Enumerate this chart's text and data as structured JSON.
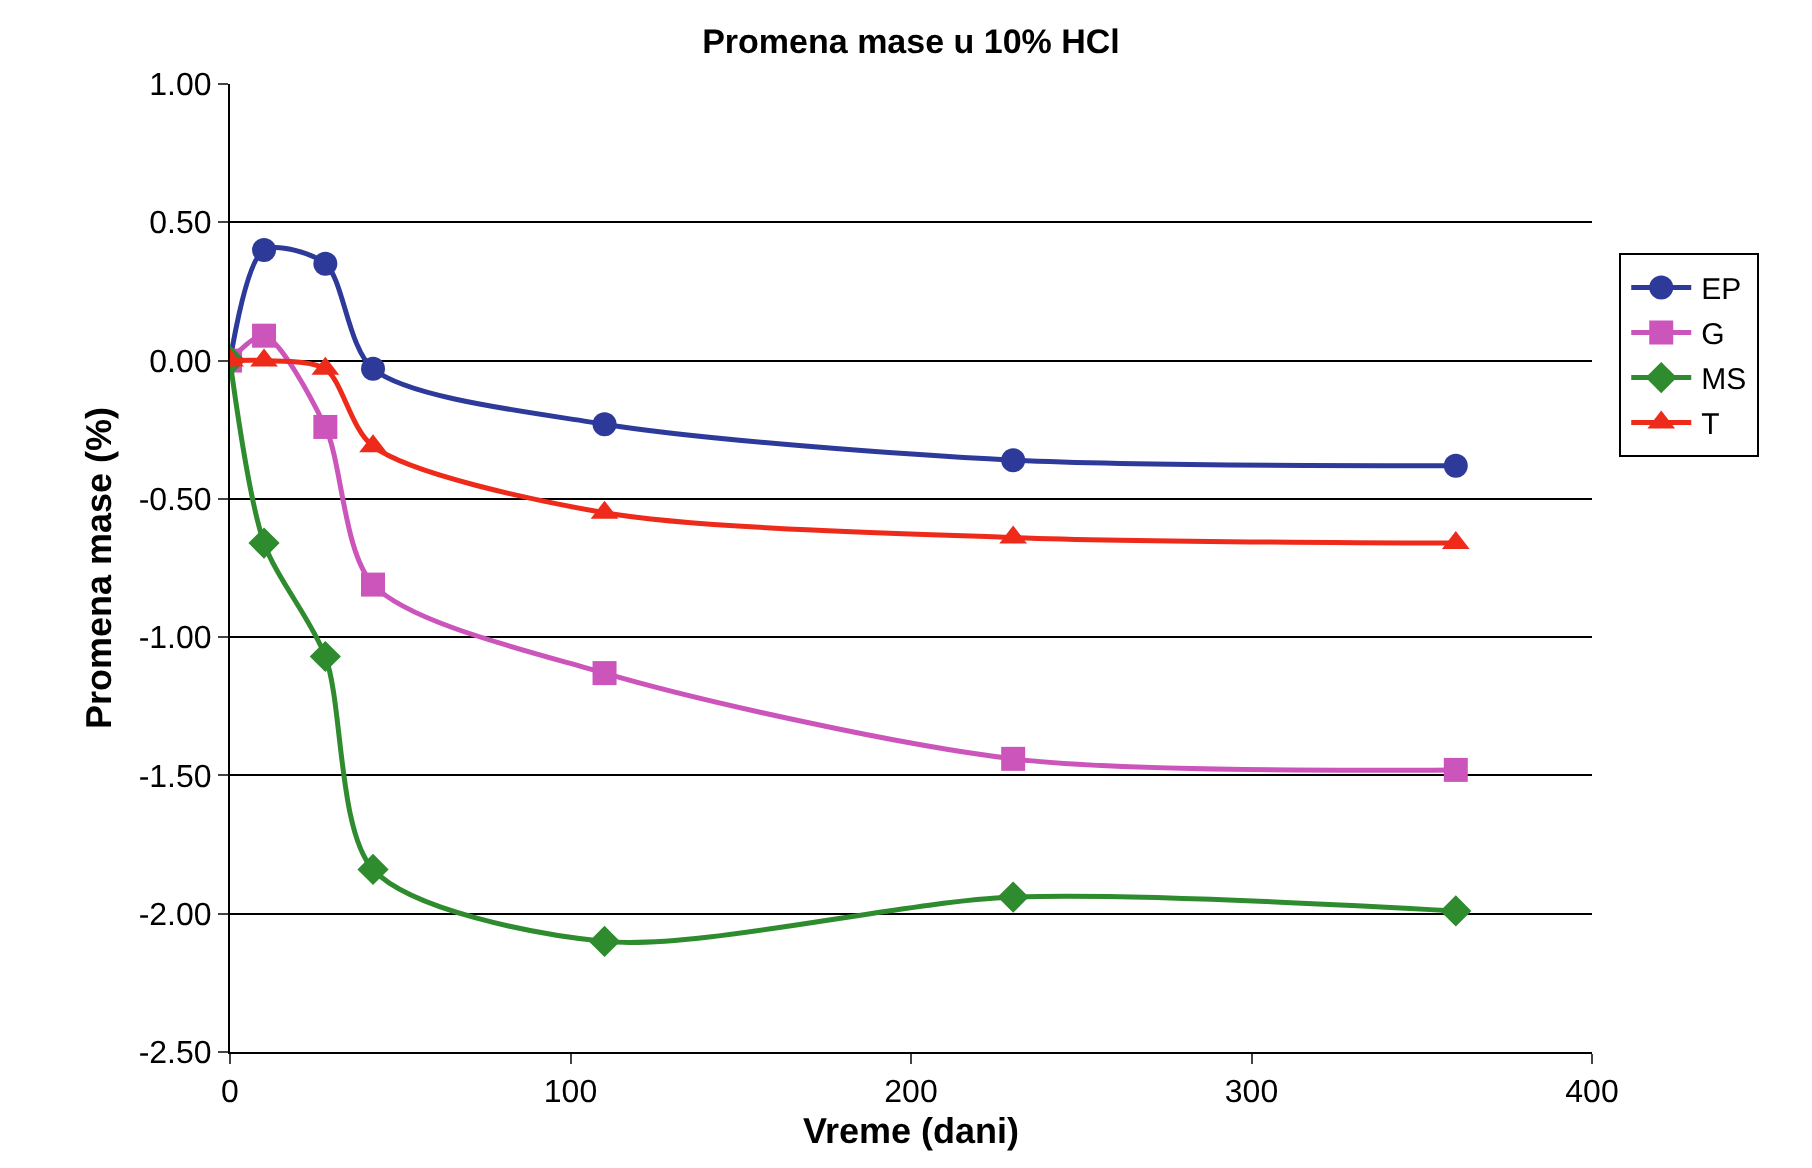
{
  "chart_data": {
    "type": "line",
    "title": "Promena mase u 10% HCl",
    "xlabel": "Vreme (dani)",
    "ylabel": "Promena mase (%)",
    "x": [
      0,
      10,
      28,
      42,
      110,
      230,
      360
    ],
    "series": [
      {
        "name": "EP",
        "color": "#2e3a9a",
        "marker": "circle",
        "values": [
          0,
          0.4,
          0.35,
          -0.03,
          -0.23,
          -0.36,
          -0.38
        ]
      },
      {
        "name": "G",
        "color": "#cc55bb",
        "marker": "square",
        "values": [
          0,
          0.09,
          -0.24,
          -0.81,
          -1.13,
          -1.44,
          -1.48
        ]
      },
      {
        "name": "MS",
        "color": "#2e8b2e",
        "marker": "diamond",
        "values": [
          0,
          -0.66,
          -1.07,
          -1.84,
          -2.1,
          -1.94,
          -1.99
        ]
      },
      {
        "name": "T",
        "color": "#ee2a1a",
        "marker": "triangle",
        "values": [
          0,
          0,
          -0.03,
          -0.31,
          -0.55,
          -0.64,
          -0.66
        ]
      }
    ],
    "xlim": [
      0,
      400
    ],
    "xticks": [
      0,
      100,
      200,
      300,
      400
    ],
    "ylim": [
      -2.5,
      1.0
    ],
    "yticks": [
      {
        "value": -2.5,
        "label": "-2.50"
      },
      {
        "value": -2.0,
        "label": "-2.00"
      },
      {
        "value": -1.5,
        "label": "-1.50"
      },
      {
        "value": -1.0,
        "label": "-1.00"
      },
      {
        "value": -0.5,
        "label": "-0.50"
      },
      {
        "value": 0,
        "label": "0.00"
      },
      {
        "value": 0.5,
        "label": "0.50"
      },
      {
        "value": 1.0,
        "label": "1.00"
      }
    ],
    "grid": "y",
    "legend": "right"
  }
}
